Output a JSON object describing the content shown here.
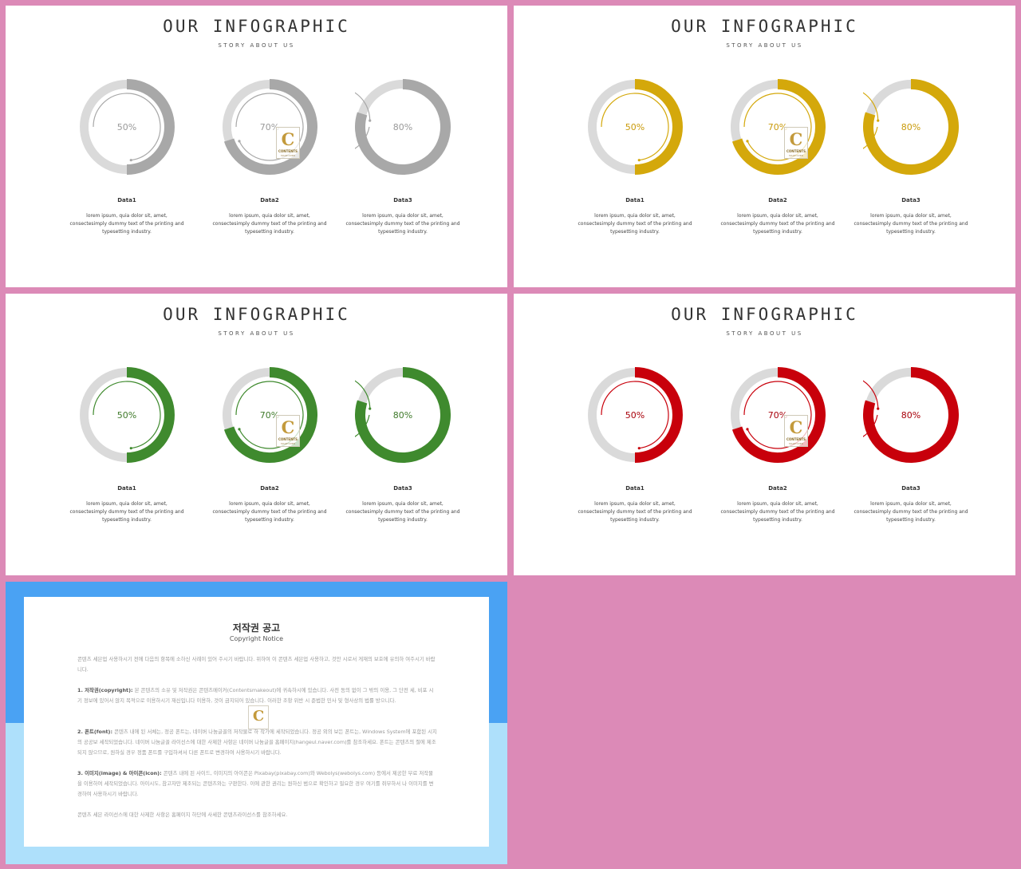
{
  "slides": [
    {
      "title": "OUR INFOGRAPHIC",
      "subtitle": "STORY ABOUT US",
      "accent": "#a8a8a8",
      "text_color": "#9a9a9a",
      "cards": [
        {
          "percent_label": "50%",
          "value": 50,
          "label": "Data1",
          "desc": [
            "lorem ipsum, quia dolor sit, amet,",
            "consectesimply dummy text of the printing and",
            "typesetting industry."
          ]
        },
        {
          "percent_label": "70%",
          "value": 70,
          "label": "Data2",
          "desc": [
            "lorem ipsum, quia dolor sit, amet,",
            "consectesimply dummy text of the printing and",
            "typesetting industry."
          ]
        },
        {
          "percent_label": "80%",
          "value": 80,
          "label": "Data3",
          "desc": [
            "lorem ipsum, quia dolor sit, amet,",
            "consectesimply dummy text of the printing and",
            "typesetting industry."
          ]
        }
      ]
    },
    {
      "title": "OUR INFOGRAPHIC",
      "subtitle": "STORY ABOUT US",
      "accent": "#d4a80b",
      "text_color": "#c99a0a",
      "cards": [
        {
          "percent_label": "50%",
          "value": 50,
          "label": "Data1",
          "desc": [
            "lorem ipsum, quia dolor sit, amet,",
            "consectesimply dummy text of the printing and",
            "typesetting industry."
          ]
        },
        {
          "percent_label": "70%",
          "value": 70,
          "label": "Data2",
          "desc": [
            "lorem ipsum, quia dolor sit, amet,",
            "consectesimply dummy text of the printing and",
            "typesetting industry."
          ]
        },
        {
          "percent_label": "80%",
          "value": 80,
          "label": "Data3",
          "desc": [
            "lorem ipsum, quia dolor sit, amet,",
            "consectesimply dummy text of the printing and",
            "typesetting industry."
          ]
        }
      ]
    },
    {
      "title": "OUR INFOGRAPHIC",
      "subtitle": "STORY ABOUT US",
      "accent": "#3f8a2e",
      "text_color": "#3f7a2a",
      "cards": [
        {
          "percent_label": "50%",
          "value": 50,
          "label": "Data1",
          "desc": [
            "lorem ipsum, quia dolor sit, amet,",
            "consectesimply dummy text of the printing and",
            "typesetting industry."
          ]
        },
        {
          "percent_label": "70%",
          "value": 70,
          "label": "Data2",
          "desc": [
            "lorem ipsum, quia dolor sit, amet,",
            "consectesimply dummy text of the printing and",
            "typesetting industry."
          ]
        },
        {
          "percent_label": "80%",
          "value": 80,
          "label": "Data3",
          "desc": [
            "lorem ipsum, quia dolor sit, amet,",
            "consectesimply dummy text of the printing and",
            "typesetting industry."
          ]
        }
      ]
    },
    {
      "title": "OUR INFOGRAPHIC",
      "subtitle": "STORY ABOUT US",
      "accent": "#c8000b",
      "text_color": "#a8000a",
      "cards": [
        {
          "percent_label": "50%",
          "value": 50,
          "label": "Data1",
          "desc": [
            "lorem ipsum, quia dolor sit, amet,",
            "consectesimply dummy text of the printing and",
            "typesetting industry."
          ]
        },
        {
          "percent_label": "70%",
          "value": 70,
          "label": "Data2",
          "desc": [
            "lorem ipsum, quia dolor sit, amet,",
            "consectesimply dummy text of the printing and",
            "typesetting industry."
          ]
        },
        {
          "percent_label": "80%",
          "value": 80,
          "label": "Data3",
          "desc": [
            "lorem ipsum, quia dolor sit, amet,",
            "consectesimply dummy text of the printing and",
            "typesetting industry."
          ]
        }
      ]
    }
  ],
  "logo": {
    "letter": "C",
    "word": "CONTENTS",
    "sub": "MAKE OVER"
  },
  "ring_track_color": "#dadada",
  "notice": {
    "title": "저작권 공고",
    "subtitle": "Copyright Notice",
    "intro": "콘텐츠 세븐업 사용하시기 전에 다음의 항목에 소하신 사례이 있어 주시기 바랍니다. 위하여 이 콘텐츠 세븐업 사용하고, 것안 시로서 게재의 보호에 유의하 여주시기 바랍니다.",
    "items": [
      {
        "head": "1. 저작권(copyright):",
        "body": "본 콘텐츠의 소유 및 저작권은 콘텐츠메이커(Contentsmakeout)에 귀속하시에 있습니다. 사전 동의 없이 그 밖의 이용, 그 단전 세, 비포 시기 정보에 있어서 않지 목적으로 이용하시기 재신입니다 이용하, 것이 금지되어 있습니다. 이러한 조항 위반 시 준법한 민사 및 형사상의 법률 방으니다."
      },
      {
        "head": "2. 폰트(font):",
        "body": "콘텐츠 내에 된 서체는, 정공 폰트는, 네이버 나눔글꼴의 저작물로 하 작가에 세작되었습니다. 정공 외의 보든 폰트는, Windows System에 포함된 시지의 공공보 세작되었습니다. 네이버 나눔글꼴 라이선스에 대한 사제한 사항은 네이버 나눔글꼴 홈페이지(hangeul.naver.com)를 참조하세요. 폰트는 콘텐츠의 절에 제조되지 않으므로, 원하실 경우 정품 폰트를 구입하셔서 다른 폰트로 변경하여 사용하시기 바랍니다."
      },
      {
        "head": "3. 이미지(image) & 아이콘(icon):",
        "body": "콘텐츠 내에 된 사이드, 이미지의 아이콘은 Pixabay(pixabay.com)와 Webolys(webolys.com) 등에서 제공한 무료 저작물 을 이용하여 세작되었습니다. 아이시도, 참고자만 제조되는 콘텐츠와는 구판한다. 이에 관한 권리는 원하신 범으로 확인하고 필요한 경우 여기를 쥐무하서 나 이미지를 변경하여 사용하시기 바랍니다."
      }
    ],
    "outro": "콘텐츠 세븐 라이선스에 대한 사제한 사항은 홈페이지 하단에 사세한 콘텐츠라이선스를 참조하세요."
  }
}
